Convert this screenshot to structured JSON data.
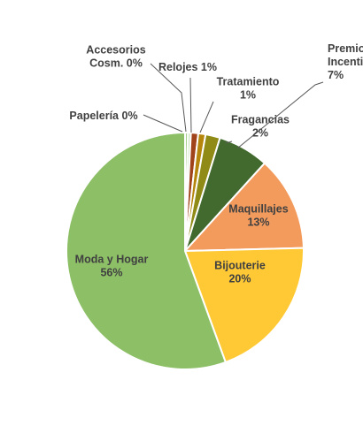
{
  "chart_data": {
    "type": "pie",
    "title": "",
    "slices": [
      {
        "label": "Premios Incentivos",
        "label_lines": [
          "Premios",
          "Incentivos"
        ],
        "pct_text": "7%",
        "value": 7,
        "color": "#426a2e"
      },
      {
        "label": "Maquillajes",
        "label_lines": [
          "Maquillajes"
        ],
        "pct_text": "13%",
        "value": 13,
        "color": "#f39b5d"
      },
      {
        "label": "Bijouterie",
        "label_lines": [
          "Bijouterie"
        ],
        "pct_text": "20%",
        "value": 20,
        "color": "#ffc935"
      },
      {
        "label": "Moda y Hogar",
        "label_lines": [
          "Moda y Hogar"
        ],
        "pct_text": "56%",
        "value": 56,
        "color": "#8dbf67"
      },
      {
        "label": "Papelería",
        "label_lines": [
          "Papelería 0%"
        ],
        "pct_text": "",
        "value": 0.4,
        "color": "#a8d08d"
      },
      {
        "label": "Accesorios Cosm.",
        "label_lines": [
          "Accesorios",
          "Cosm. 0%"
        ],
        "pct_text": "",
        "value": 0.4,
        "color": "#c5e0b4"
      },
      {
        "label": "Relojes",
        "label_lines": [
          "Relojes 1%"
        ],
        "pct_text": "",
        "value": 1,
        "color": "#a0431a"
      },
      {
        "label": "Tratamiento",
        "label_lines": [
          "Tratamiento"
        ],
        "pct_text": "1%",
        "value": 1,
        "color": "#b5860b"
      },
      {
        "label": "Fragancias",
        "label_lines": [
          "Fragancias"
        ],
        "pct_text": "2%",
        "value": 2,
        "color": "#8f8b16"
      }
    ],
    "legend": "none",
    "data_labels": "category and percent"
  }
}
